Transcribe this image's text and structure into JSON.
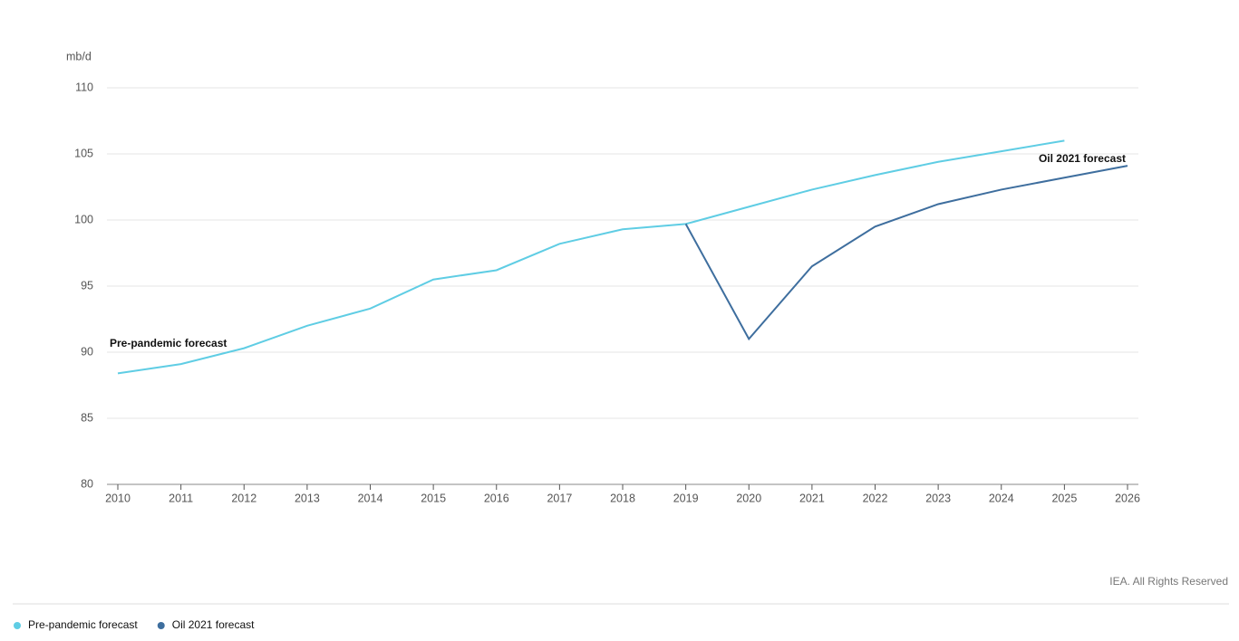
{
  "chart_data": {
    "type": "line",
    "y_unit": "mb/d",
    "x": [
      2010,
      2011,
      2012,
      2013,
      2014,
      2015,
      2016,
      2017,
      2018,
      2019,
      2020,
      2021,
      2022,
      2023,
      2024,
      2025,
      2026
    ],
    "xlim": [
      2010,
      2026
    ],
    "xticks": [
      2010,
      2011,
      2012,
      2013,
      2014,
      2015,
      2016,
      2017,
      2018,
      2019,
      2020,
      2021,
      2022,
      2023,
      2024,
      2025,
      2026
    ],
    "ylim": [
      80,
      110
    ],
    "yticks": [
      80,
      85,
      90,
      95,
      100,
      105,
      110
    ],
    "grid": true,
    "legend": "bottom-left",
    "series": [
      {
        "name": "Pre-pandemic forecast",
        "color": "#5fcde4",
        "values": [
          88.4,
          89.1,
          90.3,
          92.0,
          93.3,
          95.5,
          96.2,
          98.2,
          99.3,
          99.7,
          101.0,
          102.3,
          103.4,
          104.4,
          105.2,
          106.0,
          null
        ]
      },
      {
        "name": "Oil 2021 forecast",
        "color": "#3e6e9e",
        "values": [
          null,
          null,
          null,
          null,
          null,
          null,
          null,
          null,
          null,
          99.7,
          91.0,
          96.5,
          99.5,
          101.2,
          102.3,
          103.2,
          104.1
        ]
      }
    ],
    "annotations": [
      "Pre-pandemic forecast",
      "Oil 2021 forecast"
    ],
    "source": "IEA. All Rights Reserved"
  }
}
